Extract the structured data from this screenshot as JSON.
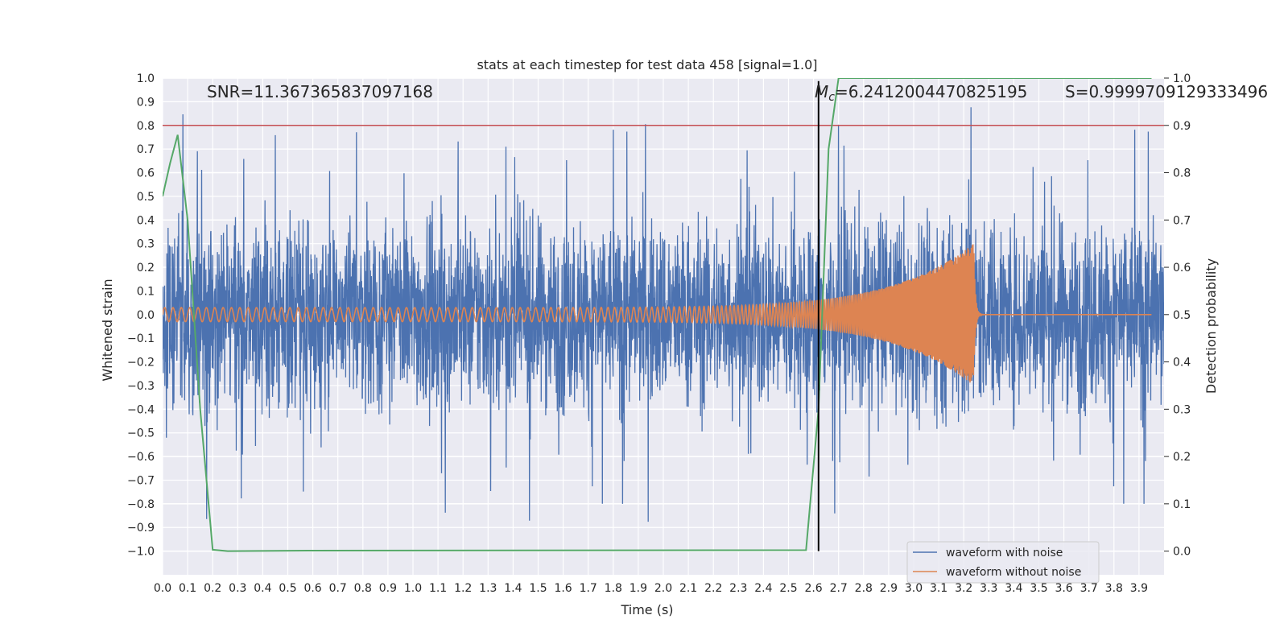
{
  "chart_data": {
    "type": "line",
    "title": "stats at each timestep for test data 458 [signal=1.0]",
    "xlabel": "Time (s)",
    "ylabel_left": "Whitened strain",
    "ylabel_right": "Detection probability",
    "xlim": [
      0.0,
      4.0
    ],
    "ylim_left": [
      -1.1,
      1.0
    ],
    "ylim_right": [
      -0.05,
      1.0
    ],
    "grid": true,
    "x_ticks": [
      "0.0",
      "0.1",
      "0.2",
      "0.3",
      "0.4",
      "0.5",
      "0.6",
      "0.7",
      "0.8",
      "0.9",
      "1.0",
      "1.1",
      "1.2",
      "1.3",
      "1.4",
      "1.5",
      "1.6",
      "1.7",
      "1.8",
      "1.9",
      "2.0",
      "2.1",
      "2.2",
      "2.3",
      "2.4",
      "2.5",
      "2.6",
      "2.7",
      "2.8",
      "2.9",
      "3.0",
      "3.1",
      "3.2",
      "3.3",
      "3.4",
      "3.5",
      "3.6",
      "3.7",
      "3.8",
      "3.9"
    ],
    "y_ticks_left": [
      "1.0",
      "0.9",
      "0.8",
      "0.7",
      "0.6",
      "0.5",
      "0.4",
      "0.3",
      "0.2",
      "0.1",
      "0.0",
      "−0.1",
      "−0.2",
      "−0.3",
      "−0.4",
      "−0.5",
      "−0.6",
      "−0.7",
      "−0.8",
      "−0.9",
      "−1.0"
    ],
    "y_ticks_right": [
      "1.0",
      "0.9",
      "0.8",
      "0.7",
      "0.6",
      "0.5",
      "0.4",
      "0.3",
      "0.2",
      "0.1",
      "0.0"
    ],
    "annotations": {
      "snr": "SNR=11.367365837097168",
      "mc_symbol": "M",
      "mc_subscript": "c",
      "mc_value": "=6.2412004470825195",
      "s": "S=0.9999709129333496"
    },
    "threshold_line": {
      "value": 0.9,
      "axis": "right",
      "color": "#c44e52"
    },
    "merger_marker": {
      "x": 2.62,
      "ymin": -1.0,
      "ymax": 0.9,
      "color": "#000000"
    },
    "series": [
      {
        "name": "waveform with noise",
        "color": "#4c72b0",
        "axis": "left",
        "kind": "noise",
        "x_range": [
          0.0,
          4.0
        ],
        "amplitude_envelope": 0.35,
        "peak_max": 0.91,
        "peak_min": -0.99
      },
      {
        "name": "waveform without noise",
        "color": "#dd8452",
        "axis": "left",
        "kind": "chirp",
        "merger_time": 3.24,
        "amplitude_start": 0.03,
        "amplitude_peak": 0.3,
        "frequency_start_hz": 30,
        "frequency_end_hz": 300
      },
      {
        "name": "detection probability",
        "color": "#55a868",
        "axis": "right",
        "x": [
          0.0,
          0.03,
          0.06,
          0.1,
          0.15,
          0.2,
          0.26,
          0.6,
          2.57,
          2.62,
          2.66,
          2.7,
          3.95
        ],
        "y": [
          0.75,
          0.82,
          0.88,
          0.7,
          0.3,
          0.003,
          0.0,
          0.001,
          0.002,
          0.3,
          0.85,
          1.0,
          1.0
        ]
      }
    ],
    "legend": {
      "location": "bottom-right",
      "entries": [
        {
          "label": "waveform with noise",
          "color": "#4c72b0"
        },
        {
          "label": "waveform without noise",
          "color": "#dd8452"
        }
      ]
    }
  }
}
